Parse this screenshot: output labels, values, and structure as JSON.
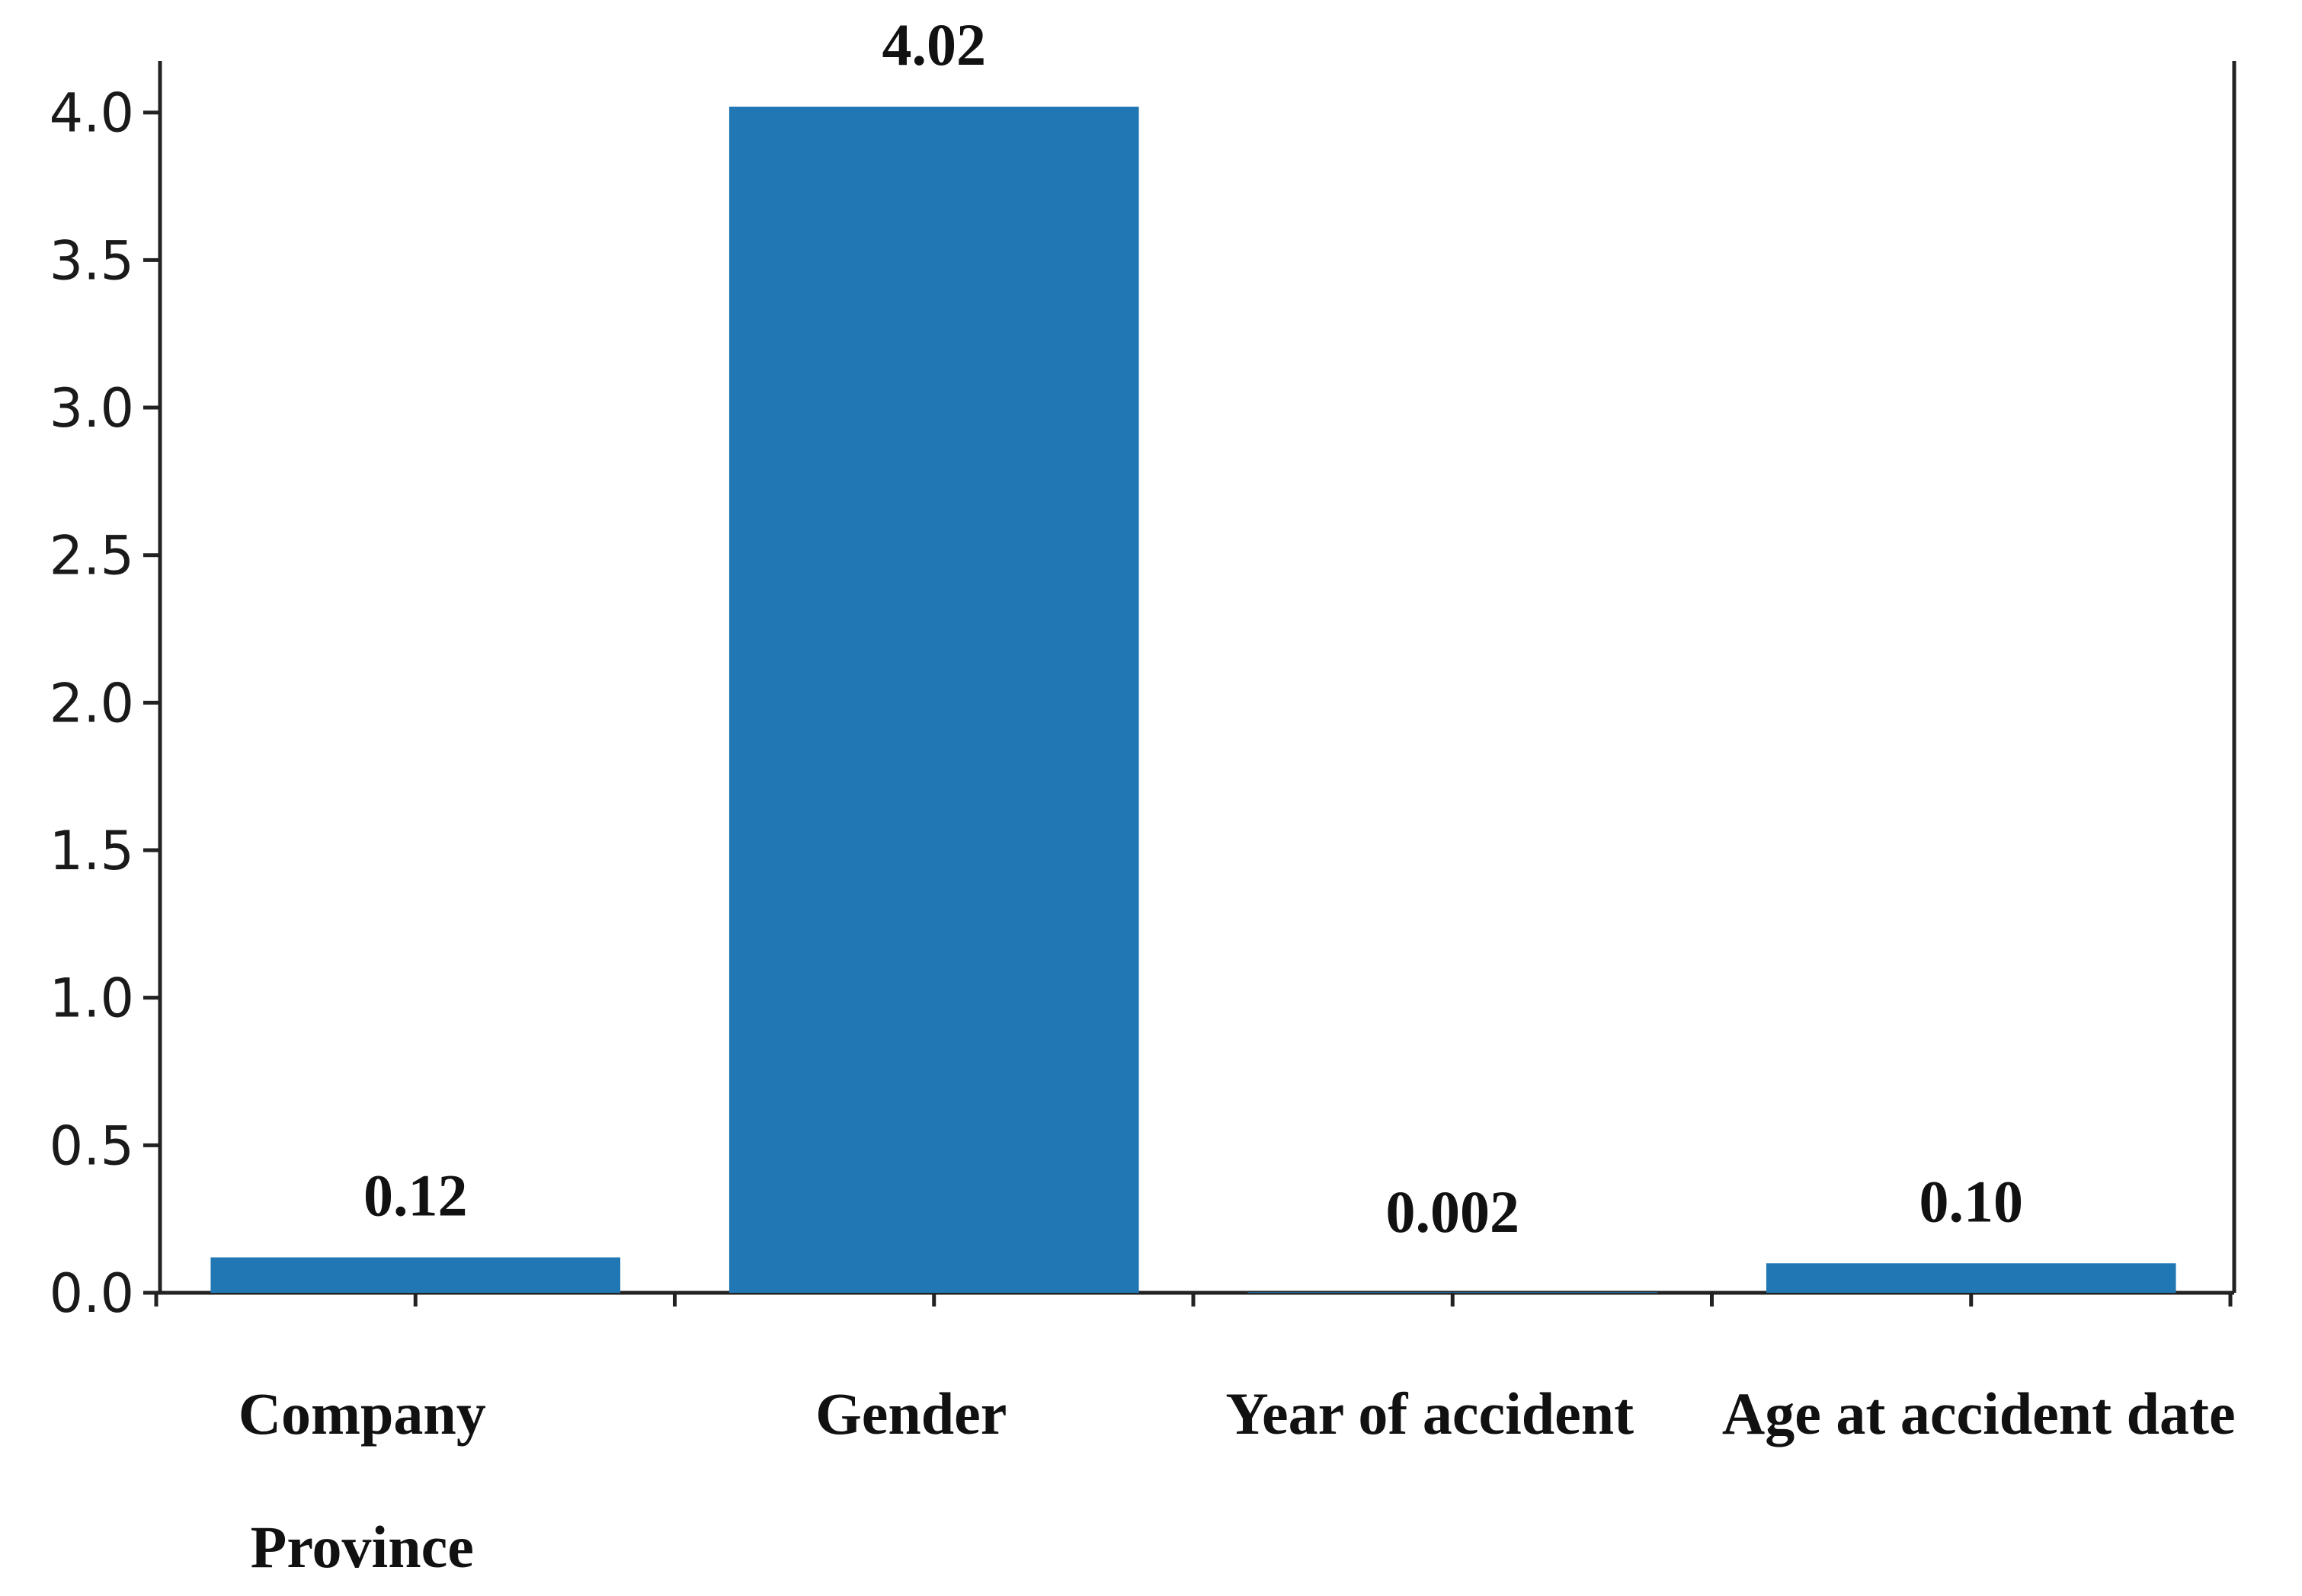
{
  "chart_data": {
    "type": "bar",
    "categories": [
      [
        "Company",
        "Province"
      ],
      [
        "Gender"
      ],
      [
        "Year of accident"
      ],
      [
        "Age at accident date"
      ]
    ],
    "values": [
      0.12,
      4.02,
      0.002,
      0.1
    ],
    "value_labels": [
      "0.12",
      "4.02",
      "0.002",
      "0.10"
    ],
    "y_ticks": [
      0.0,
      0.5,
      1.0,
      1.5,
      2.0,
      2.5,
      3.0,
      3.5,
      4.0
    ],
    "y_tick_labels": [
      "0.0",
      "0.5",
      "1.0",
      "1.5",
      "2.0",
      "2.5",
      "3.0",
      "3.5",
      "4.0"
    ],
    "ylim": [
      0,
      4.02
    ],
    "bar_color": "#2077b4",
    "grid": false,
    "title": "",
    "xlabel": "",
    "ylabel": ""
  }
}
